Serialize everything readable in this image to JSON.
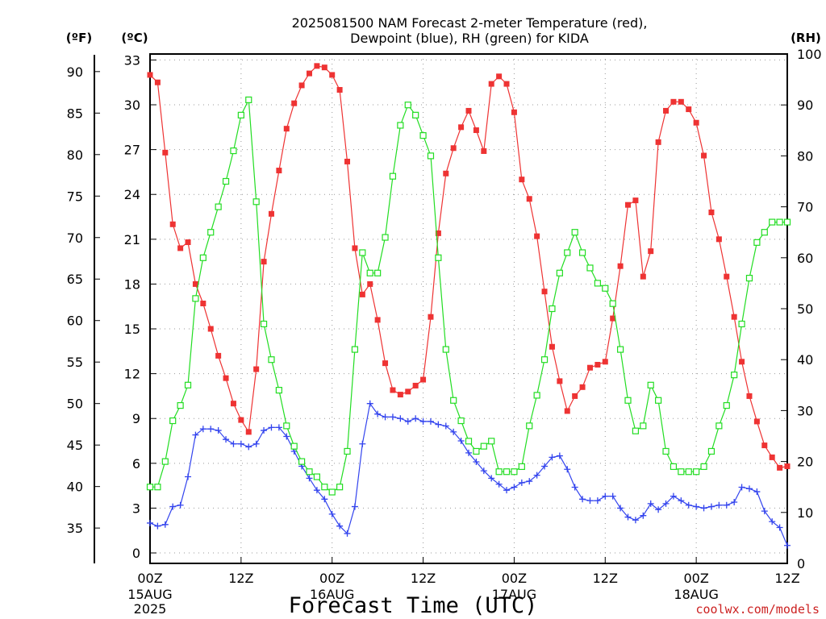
{
  "title_line1": "2025081500 NAM Forecast 2-meter Temperature (red),",
  "title_line2": "Dewpoint (blue), RH (green) for KIDA",
  "unit_f": "(ºF)",
  "unit_c": "(ºC)",
  "unit_rh": "(RH)",
  "xlabel": "Forecast Time (UTC)",
  "credit": "coolwx.com/models",
  "colors": {
    "temperature": "#ee3333",
    "dewpoint": "#3344ee",
    "rh": "#22dd22",
    "grid": "#999999",
    "credit": "#cc2222"
  },
  "chart_data": {
    "type": "line",
    "x_unit": "hours since 2025-08-15 00Z",
    "x_ticks": [
      {
        "hour": 0,
        "label": "00Z",
        "sub1": "15AUG",
        "sub2": "2025"
      },
      {
        "hour": 12,
        "label": "12Z",
        "sub1": "",
        "sub2": ""
      },
      {
        "hour": 24,
        "label": "00Z",
        "sub1": "16AUG",
        "sub2": ""
      },
      {
        "hour": 36,
        "label": "12Z",
        "sub1": "",
        "sub2": ""
      },
      {
        "hour": 48,
        "label": "00Z",
        "sub1": "17AUG",
        "sub2": ""
      },
      {
        "hour": 60,
        "label": "12Z",
        "sub1": "",
        "sub2": ""
      },
      {
        "hour": 72,
        "label": "00Z",
        "sub1": "18AUG",
        "sub2": ""
      },
      {
        "hour": 84,
        "label": "12Z",
        "sub1": "",
        "sub2": ""
      }
    ],
    "xlim": [
      0,
      84
    ],
    "ylim_c": [
      -0.7,
      33.4
    ],
    "ylim_rh": [
      0,
      100
    ],
    "c_ticks": [
      0,
      3,
      6,
      9,
      12,
      15,
      18,
      21,
      24,
      27,
      30,
      33
    ],
    "f_ticks": [
      35,
      40,
      45,
      50,
      55,
      60,
      65,
      70,
      75,
      80,
      85,
      90
    ],
    "rh_ticks": [
      0,
      10,
      20,
      30,
      40,
      50,
      60,
      70,
      80,
      90,
      100
    ],
    "grid": true,
    "series": [
      {
        "key": "temperature",
        "axis": "c",
        "marker": "filled-square",
        "x": [
          0,
          1,
          2,
          3,
          4,
          5,
          6,
          7,
          8,
          9,
          10,
          11,
          12,
          13,
          14,
          15,
          16,
          17,
          18,
          19,
          20,
          21,
          22,
          23,
          24,
          25,
          26,
          27,
          28,
          29,
          30,
          31,
          32,
          33,
          34,
          35,
          36,
          37,
          38,
          39,
          40,
          41,
          42,
          43,
          44,
          45,
          46,
          47,
          48,
          49,
          50,
          51,
          52,
          53,
          54,
          55,
          56,
          57,
          58,
          59,
          60,
          61,
          62,
          63,
          64,
          65,
          66,
          67,
          68,
          69,
          70,
          71,
          72,
          73,
          74,
          75,
          76,
          77,
          78,
          79,
          80,
          81,
          82,
          83,
          84
        ],
        "values": [
          32.0,
          31.5,
          26.8,
          22.0,
          20.4,
          20.8,
          18.0,
          16.7,
          15.0,
          13.2,
          11.7,
          10.0,
          8.9,
          8.1,
          12.3,
          19.5,
          22.7,
          25.6,
          28.4,
          30.1,
          31.3,
          32.1,
          32.6,
          32.5,
          32.0,
          31.0,
          26.2,
          20.4,
          17.3,
          18.0,
          15.6,
          12.7,
          10.9,
          10.6,
          10.8,
          11.2,
          11.6,
          15.8,
          21.4,
          25.4,
          27.1,
          28.5,
          29.6,
          28.3,
          26.9,
          31.4,
          31.9,
          31.4,
          29.5,
          25.0,
          23.7,
          21.2,
          17.5,
          13.8,
          11.5,
          9.5,
          10.5,
          11.1,
          12.4,
          12.6,
          12.8,
          15.7,
          19.2,
          23.3,
          23.6,
          18.5,
          20.2,
          27.5,
          29.6,
          30.2,
          30.2,
          29.7,
          28.8,
          26.6,
          22.8,
          21.0,
          18.5,
          15.8,
          12.8,
          10.5,
          8.8,
          7.2,
          6.4,
          5.7,
          5.8
        ]
      },
      {
        "key": "dewpoint",
        "axis": "c",
        "marker": "plus",
        "x": [
          0,
          1,
          2,
          3,
          4,
          5,
          6,
          7,
          8,
          9,
          10,
          11,
          12,
          13,
          14,
          15,
          16,
          17,
          18,
          19,
          20,
          21,
          22,
          23,
          24,
          25,
          26,
          27,
          28,
          29,
          30,
          31,
          32,
          33,
          34,
          35,
          36,
          37,
          38,
          39,
          40,
          41,
          42,
          43,
          44,
          45,
          46,
          47,
          48,
          49,
          50,
          51,
          52,
          53,
          54,
          55,
          56,
          57,
          58,
          59,
          60,
          61,
          62,
          63,
          64,
          65,
          66,
          67,
          68,
          69,
          70,
          71,
          72,
          73,
          74,
          75,
          76,
          77,
          78,
          79,
          80,
          81,
          82,
          83,
          84
        ],
        "values": [
          2.0,
          1.8,
          1.9,
          3.1,
          3.2,
          5.1,
          7.9,
          8.3,
          8.3,
          8.2,
          7.6,
          7.3,
          7.3,
          7.1,
          7.3,
          8.2,
          8.4,
          8.4,
          7.8,
          6.8,
          5.8,
          5.0,
          4.2,
          3.6,
          2.6,
          1.8,
          1.3,
          3.1,
          7.3,
          10.0,
          9.3,
          9.1,
          9.1,
          9.0,
          8.8,
          9.0,
          8.8,
          8.8,
          8.6,
          8.5,
          8.1,
          7.5,
          6.7,
          6.1,
          5.5,
          5.0,
          4.6,
          4.2,
          4.4,
          4.7,
          4.8,
          5.2,
          5.8,
          6.4,
          6.5,
          5.6,
          4.4,
          3.6,
          3.5,
          3.5,
          3.8,
          3.8,
          3.0,
          2.4,
          2.2,
          2.5,
          3.3,
          2.9,
          3.3,
          3.8,
          3.5,
          3.2,
          3.1,
          3.0,
          3.1,
          3.2,
          3.2,
          3.4,
          4.4,
          4.3,
          4.1,
          2.8,
          2.1,
          1.7,
          0.5
        ]
      },
      {
        "key": "rh",
        "axis": "rh",
        "marker": "open-square",
        "x": [
          0,
          1,
          2,
          3,
          4,
          5,
          6,
          7,
          8,
          9,
          10,
          11,
          12,
          13,
          14,
          15,
          16,
          17,
          18,
          19,
          20,
          21,
          22,
          23,
          24,
          25,
          26,
          27,
          28,
          29,
          30,
          31,
          32,
          33,
          34,
          35,
          36,
          37,
          38,
          39,
          40,
          41,
          42,
          43,
          44,
          45,
          46,
          47,
          48,
          49,
          50,
          51,
          52,
          53,
          54,
          55,
          56,
          57,
          58,
          59,
          60,
          61,
          62,
          63,
          64,
          65,
          66,
          67,
          68,
          69,
          70,
          71,
          72,
          73,
          74,
          75,
          76,
          77,
          78,
          79,
          80,
          81,
          82,
          83,
          84
        ],
        "values": [
          15,
          15,
          20,
          28,
          31,
          35,
          52,
          60,
          65,
          70,
          75,
          81,
          88,
          91,
          71,
          47,
          40,
          34,
          27,
          23,
          20,
          18,
          17,
          15,
          14,
          15,
          22,
          42,
          61,
          57,
          57,
          64,
          76,
          86,
          90,
          88,
          84,
          80,
          60,
          42,
          32,
          28,
          24,
          22,
          23,
          24,
          18,
          18,
          18,
          19,
          27,
          33,
          40,
          50,
          57,
          61,
          65,
          61,
          58,
          55,
          54,
          51,
          42,
          32,
          26,
          27,
          35,
          32,
          22,
          19,
          18,
          18,
          18,
          19,
          22,
          27,
          31,
          37,
          47,
          56,
          63,
          65,
          67,
          67,
          67
        ]
      }
    ]
  }
}
